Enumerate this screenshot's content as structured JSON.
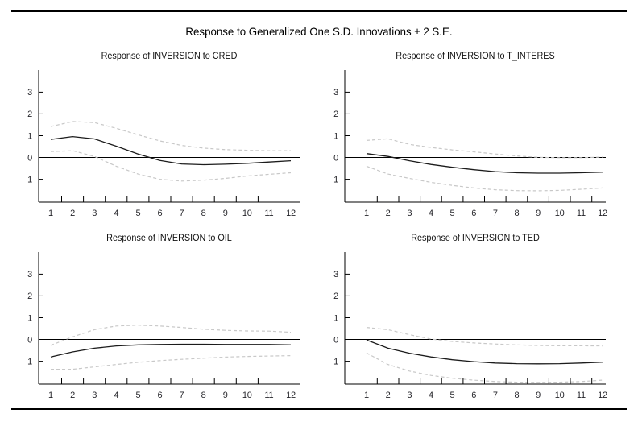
{
  "page": {
    "main_title": "Response to Generalized One S.D. Innovations ± 2 S.E.",
    "background": "#ffffff"
  },
  "colors": {
    "axis": "#000000",
    "response_line": "#1c1c1c",
    "se_band": "#c8c8c8",
    "tick_text": "#26262b",
    "title_text": "#111111"
  },
  "chart_data": [
    {
      "type": "line",
      "title": "Response of INVERSION to CRED",
      "xlabel": "",
      "ylabel": "",
      "x": [
        1,
        2,
        3,
        4,
        5,
        6,
        7,
        8,
        9,
        10,
        11,
        12
      ],
      "x_ticks": [
        1,
        2,
        3,
        4,
        5,
        6,
        7,
        8,
        9,
        10,
        11,
        12
      ],
      "y_ticks": [
        -1,
        0,
        1,
        2,
        3
      ],
      "ylim": [
        -2.05,
        3.9
      ],
      "grid": false,
      "legend": "none",
      "zero_line": true,
      "series": [
        {
          "name": "Response of INVERSION",
          "style": "solid",
          "values": [
            0.83,
            0.96,
            0.85,
            0.52,
            0.16,
            -0.14,
            -0.3,
            -0.33,
            -0.31,
            -0.27,
            -0.21,
            -0.15
          ]
        },
        {
          "name": "+2 S.E.",
          "style": "dashed",
          "values": [
            1.42,
            1.65,
            1.6,
            1.34,
            1.04,
            0.76,
            0.55,
            0.43,
            0.36,
            0.33,
            0.31,
            0.31
          ]
        },
        {
          "name": "-2 S.E.",
          "style": "dashed",
          "values": [
            0.27,
            0.31,
            0.05,
            -0.4,
            -0.76,
            -1.0,
            -1.08,
            -1.04,
            -0.96,
            -0.85,
            -0.77,
            -0.7
          ]
        }
      ]
    },
    {
      "type": "line",
      "title": "Response of INVERSION to T_INTERES",
      "xlabel": "",
      "ylabel": "",
      "x": [
        1,
        2,
        3,
        4,
        5,
        6,
        7,
        8,
        9,
        10,
        11,
        12
      ],
      "x_ticks": [
        1,
        2,
        3,
        4,
        5,
        6,
        7,
        8,
        9,
        10,
        11,
        12
      ],
      "y_ticks": [
        -1,
        0,
        1,
        2,
        3
      ],
      "ylim": [
        -2.05,
        3.9
      ],
      "grid": false,
      "legend": "none",
      "zero_line": true,
      "series": [
        {
          "name": "Response of INVERSION",
          "style": "solid",
          "values": [
            0.18,
            0.05,
            -0.15,
            -0.32,
            -0.45,
            -0.56,
            -0.65,
            -0.7,
            -0.72,
            -0.72,
            -0.7,
            -0.67
          ]
        },
        {
          "name": "+2 S.E.",
          "style": "dashed",
          "values": [
            0.78,
            0.86,
            0.6,
            0.46,
            0.35,
            0.26,
            0.16,
            0.07,
            0.01,
            -0.01,
            -0.01,
            0.02
          ]
        },
        {
          "name": "-2 S.E.",
          "style": "dashed",
          "values": [
            -0.4,
            -0.76,
            -0.96,
            -1.14,
            -1.28,
            -1.4,
            -1.48,
            -1.52,
            -1.53,
            -1.51,
            -1.46,
            -1.4
          ]
        }
      ]
    },
    {
      "type": "line",
      "title": "Response of INVERSION to OIL",
      "xlabel": "",
      "ylabel": "",
      "x": [
        1,
        2,
        3,
        4,
        5,
        6,
        7,
        8,
        9,
        10,
        11,
        12
      ],
      "x_ticks": [
        1,
        2,
        3,
        4,
        5,
        6,
        7,
        8,
        9,
        10,
        11,
        12
      ],
      "y_ticks": [
        -1,
        0,
        1,
        2,
        3
      ],
      "ylim": [
        -2.05,
        3.9
      ],
      "grid": false,
      "legend": "none",
      "zero_line": true,
      "series": [
        {
          "name": "Response of INVERSION",
          "style": "solid",
          "values": [
            -0.8,
            -0.57,
            -0.4,
            -0.3,
            -0.25,
            -0.23,
            -0.22,
            -0.22,
            -0.23,
            -0.23,
            -0.23,
            -0.25
          ]
        },
        {
          "name": "+2 S.E.",
          "style": "dashed",
          "values": [
            -0.27,
            0.12,
            0.45,
            0.62,
            0.66,
            0.62,
            0.55,
            0.47,
            0.42,
            0.39,
            0.38,
            0.33
          ]
        },
        {
          "name": "-2 S.E.",
          "style": "dashed",
          "values": [
            -1.37,
            -1.37,
            -1.26,
            -1.15,
            -1.05,
            -0.97,
            -0.91,
            -0.86,
            -0.81,
            -0.78,
            -0.76,
            -0.74
          ]
        }
      ]
    },
    {
      "type": "line",
      "title": "Response of INVERSION to TED",
      "xlabel": "",
      "ylabel": "",
      "x": [
        1,
        2,
        3,
        4,
        5,
        6,
        7,
        8,
        9,
        10,
        11,
        12
      ],
      "x_ticks": [
        1,
        2,
        3,
        4,
        5,
        6,
        7,
        8,
        9,
        10,
        11,
        12
      ],
      "y_ticks": [
        -1,
        0,
        1,
        2,
        3
      ],
      "ylim": [
        -2.05,
        3.9
      ],
      "grid": false,
      "legend": "none",
      "zero_line": true,
      "series": [
        {
          "name": "Response of INVERSION",
          "style": "solid",
          "values": [
            -0.02,
            -0.4,
            -0.63,
            -0.8,
            -0.93,
            -1.02,
            -1.08,
            -1.11,
            -1.12,
            -1.11,
            -1.08,
            -1.04
          ]
        },
        {
          "name": "+2 S.E.",
          "style": "dashed",
          "values": [
            0.55,
            0.45,
            0.22,
            0.02,
            -0.09,
            -0.16,
            -0.21,
            -0.25,
            -0.28,
            -0.29,
            -0.29,
            -0.3
          ]
        },
        {
          "name": "-2 S.E.",
          "style": "dashed",
          "values": [
            -0.62,
            -1.15,
            -1.45,
            -1.65,
            -1.78,
            -1.87,
            -1.93,
            -1.96,
            -1.97,
            -1.96,
            -1.93,
            -1.87
          ]
        }
      ]
    }
  ]
}
